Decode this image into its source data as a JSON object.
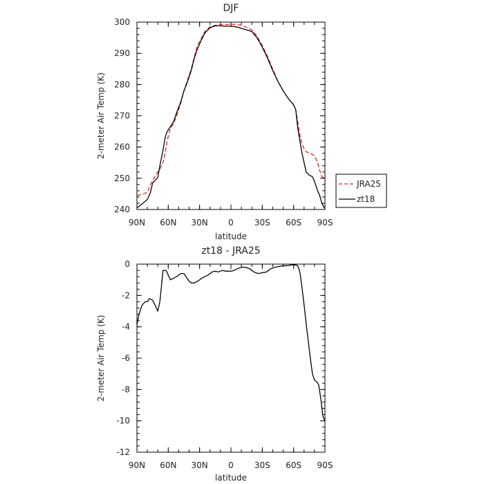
{
  "chart_data": [
    {
      "type": "line",
      "title": "DJF",
      "xlabel": "latitude",
      "ylabel": "2-meter Air Temp (K)",
      "ylim": [
        240,
        300
      ],
      "xlim": [
        -90,
        90
      ],
      "y_ticks": [
        240,
        250,
        260,
        270,
        280,
        290,
        300
      ],
      "x_ticks": [
        {
          "value": -90,
          "label": "90N"
        },
        {
          "value": -60,
          "label": "60N"
        },
        {
          "value": -30,
          "label": "30N"
        },
        {
          "value": 0,
          "label": "0"
        },
        {
          "value": 30,
          "label": "30S"
        },
        {
          "value": 60,
          "label": "60S"
        },
        {
          "value": 90,
          "label": "90S"
        }
      ],
      "legend": "right",
      "series": [
        {
          "name": "JRA25",
          "color": "#e0201b",
          "dash": "dashed",
          "x": [
            -90,
            -85,
            -80,
            -77,
            -72,
            -68,
            -65,
            -63,
            -61,
            -58,
            -55,
            -52,
            -48,
            -45,
            -42,
            -38,
            -35,
            -32,
            -28,
            -25,
            -20,
            -15,
            -10,
            -5,
            0,
            5,
            10,
            15,
            20,
            25,
            30,
            35,
            40,
            45,
            50,
            55,
            60,
            62,
            64,
            66,
            68,
            70,
            72,
            75,
            77,
            80,
            83,
            85,
            87,
            90
          ],
          "y": [
            244.5,
            244.8,
            245.5,
            248,
            251,
            253,
            255,
            258,
            262,
            266,
            267.5,
            270,
            274,
            278,
            281,
            285,
            289,
            292.5,
            295,
            297,
            298.5,
            299,
            299.2,
            299.2,
            299.3,
            299.3,
            299,
            298.3,
            297.5,
            295.5,
            292.5,
            289,
            285,
            281,
            278,
            275.5,
            273.5,
            272,
            268,
            264,
            261,
            259.5,
            258.5,
            258,
            257.8,
            257.2,
            255,
            252.5,
            250.5,
            250
          ]
        },
        {
          "name": "zt18",
          "color": "#000000",
          "dash": "solid",
          "x": [
            -90,
            -85,
            -80,
            -77,
            -75,
            -72,
            -70,
            -68,
            -65,
            -63,
            -61,
            -58,
            -55,
            -52,
            -48,
            -45,
            -42,
            -38,
            -35,
            -32,
            -28,
            -25,
            -20,
            -15,
            -10,
            -5,
            0,
            5,
            10,
            15,
            20,
            25,
            30,
            35,
            40,
            45,
            50,
            55,
            60,
            62,
            64,
            66,
            68,
            70,
            72,
            75,
            78,
            80,
            83,
            85,
            87,
            90
          ],
          "y": [
            240.5,
            241.8,
            243.2,
            245.5,
            248.5,
            249.5,
            250.2,
            254,
            259,
            263,
            265,
            266.5,
            268,
            271,
            274.5,
            278,
            280.5,
            284.5,
            288.5,
            291.5,
            294.5,
            296.5,
            298.2,
            298.8,
            298.8,
            298.7,
            298.7,
            298.5,
            298,
            297.5,
            297,
            295,
            292,
            288.5,
            284.5,
            281,
            278,
            275.5,
            273.5,
            272,
            266,
            262,
            258,
            255,
            252,
            251,
            250.5,
            249,
            246,
            244.5,
            242,
            240.2
          ]
        }
      ]
    },
    {
      "type": "line",
      "title": "zt18 - JRA25",
      "xlabel": "latitude",
      "ylabel": "2-meter Air Temp (K)",
      "ylim": [
        -12,
        0
      ],
      "xlim": [
        -90,
        90
      ],
      "y_ticks": [
        -12,
        -10,
        -8,
        -6,
        -4,
        -2,
        0
      ],
      "x_ticks": [
        {
          "value": -90,
          "label": "90N"
        },
        {
          "value": -60,
          "label": "60N"
        },
        {
          "value": -30,
          "label": "30N"
        },
        {
          "value": 0,
          "label": "0"
        },
        {
          "value": 30,
          "label": "30S"
        },
        {
          "value": 60,
          "label": "60S"
        },
        {
          "value": 90,
          "label": "90S"
        }
      ],
      "series": [
        {
          "color": "#000000",
          "dash": "solid",
          "x": [
            -90,
            -88,
            -85,
            -82,
            -80,
            -78,
            -75,
            -72,
            -70,
            -68,
            -65,
            -62,
            -60,
            -58,
            -55,
            -52,
            -48,
            -45,
            -42,
            -40,
            -38,
            -35,
            -32,
            -30,
            -28,
            -25,
            -22,
            -20,
            -18,
            -15,
            -12,
            -10,
            -8,
            -5,
            -2,
            0,
            3,
            6,
            10,
            14,
            18,
            22,
            26,
            30,
            34,
            38,
            42,
            46,
            50,
            54,
            58,
            62,
            64,
            66,
            68,
            70,
            72,
            74,
            76,
            78,
            80,
            82,
            84,
            86,
            88,
            90
          ],
          "y": [
            -3.9,
            -3.2,
            -2.6,
            -2.4,
            -2.4,
            -2.2,
            -2.3,
            -2.7,
            -3.0,
            -2.4,
            -0.4,
            -0.4,
            -0.7,
            -1.0,
            -0.9,
            -0.8,
            -0.6,
            -0.6,
            -0.9,
            -1.1,
            -1.2,
            -1.2,
            -1.1,
            -1.0,
            -0.9,
            -0.8,
            -0.7,
            -0.6,
            -0.5,
            -0.45,
            -0.5,
            -0.45,
            -0.4,
            -0.45,
            -0.45,
            -0.45,
            -0.4,
            -0.3,
            -0.2,
            -0.2,
            -0.3,
            -0.5,
            -0.6,
            -0.55,
            -0.5,
            -0.3,
            -0.2,
            -0.15,
            -0.1,
            -0.1,
            -0.05,
            -0.05,
            -0.1,
            -0.5,
            -1.5,
            -2.6,
            -3.8,
            -4.9,
            -6.0,
            -7.0,
            -7.4,
            -7.5,
            -7.7,
            -8.6,
            -9.7,
            -10.0
          ]
        }
      ]
    }
  ]
}
